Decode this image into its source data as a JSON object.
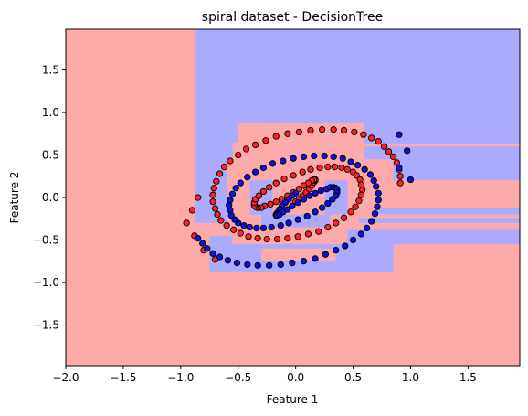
{
  "chart_data": {
    "type": "scatter",
    "title": "spiral dataset - DecisionTree",
    "xlabel": "Feature 1",
    "ylabel": "Feature 2",
    "xlim": [
      -2.0,
      1.95
    ],
    "ylim": [
      -1.98,
      1.98
    ],
    "xticks": [
      -2.0,
      -1.5,
      -1.0,
      -0.5,
      0.0,
      0.5,
      1.0,
      1.5
    ],
    "yticks": [
      -1.5,
      -1.0,
      -0.5,
      0.0,
      0.5,
      1.0,
      1.5
    ],
    "xtick_labels": [
      "−2.0",
      "−1.5",
      "−1.0",
      "−0.5",
      "0.0",
      "0.5",
      "1.0",
      "1.5"
    ],
    "ytick_labels": [
      "−1.5",
      "−1.0",
      "−0.5",
      "0.0",
      "0.5",
      "1.0",
      "1.5"
    ],
    "grid": false,
    "colors": {
      "region_red": "#ffaaaa",
      "region_blue": "#aaaaff",
      "point_red": "#ff2020",
      "point_blue": "#1010dd",
      "point_edge": "#000000"
    },
    "decision_regions": [
      {
        "class": "blue",
        "x0": -0.87,
        "x1": 1.95,
        "y0": 0.65,
        "y1": 1.98
      },
      {
        "class": "blue",
        "x0": -0.87,
        "x1": -0.55,
        "y0": 0.2,
        "y1": 0.65
      },
      {
        "class": "blue",
        "x0": -0.87,
        "x1": -0.6,
        "y0": -0.3,
        "y1": 0.2
      },
      {
        "class": "blue",
        "x0": 0.42,
        "x1": 1.95,
        "y0": 0.2,
        "y1": 0.65
      },
      {
        "class": "blue",
        "x0": -0.75,
        "x1": 0.85,
        "y0": -0.88,
        "y1": -0.45
      },
      {
        "class": "blue",
        "x0": 0.45,
        "x1": 1.95,
        "y0": -0.55,
        "y1": -0.38
      },
      {
        "class": "blue",
        "x0": 0.7,
        "x1": 1.95,
        "y0": -0.2,
        "y1": -0.12
      },
      {
        "class": "blue",
        "x0": 0.55,
        "x1": 1.95,
        "y0": -0.3,
        "y1": -0.24
      },
      {
        "class": "blue",
        "x0": -0.45,
        "x1": 0.45,
        "y0": 0.3,
        "y1": 0.45
      },
      {
        "class": "blue",
        "x0": -0.3,
        "x1": 0.3,
        "y0": -0.35,
        "y1": -0.2
      },
      {
        "class": "blue",
        "x0": -0.4,
        "x1": -0.2,
        "y0": -0.2,
        "y1": 0.3
      },
      {
        "class": "blue",
        "x0": 0.25,
        "x1": 0.45,
        "y0": -0.2,
        "y1": 0.3
      },
      {
        "class": "red",
        "x0": 0.55,
        "x1": 1.95,
        "y0": -0.12,
        "y1": 0.0
      },
      {
        "class": "red",
        "x0": -0.5,
        "x1": 0.6,
        "y0": 0.45,
        "y1": 0.88
      },
      {
        "class": "red",
        "x0": -0.6,
        "x1": 0.85,
        "y0": 0.2,
        "y1": 0.45
      },
      {
        "class": "red",
        "x0": 0.6,
        "x1": 1.95,
        "y0": 0.0,
        "y1": 0.2
      },
      {
        "class": "red",
        "x0": -0.55,
        "x1": 0.45,
        "y0": -0.55,
        "y1": -0.35
      },
      {
        "class": "red",
        "x0": -0.55,
        "x1": -0.4,
        "y0": -0.35,
        "y1": 0.2
      },
      {
        "class": "red",
        "x0": -0.2,
        "x1": 0.25,
        "y0": -0.2,
        "y1": 0.3
      },
      {
        "class": "red",
        "x0": -0.3,
        "x1": 0.35,
        "y0": -0.75,
        "y1": -0.6
      },
      {
        "class": "red",
        "x0": 0.45,
        "x1": 1.95,
        "y0": 0.6,
        "y1": 0.63
      },
      {
        "class": "red",
        "x0": 0.55,
        "x1": 1.95,
        "y0": -0.38,
        "y1": -0.32
      }
    ],
    "series": [
      {
        "class": "red",
        "x": [
          0.0,
          0.03,
          0.06,
          0.09,
          0.12,
          0.14,
          0.16,
          0.17,
          0.17,
          0.16,
          0.14,
          0.11,
          0.07,
          0.03,
          -0.02,
          -0.07,
          -0.12,
          -0.17,
          -0.22,
          -0.27,
          -0.3,
          -0.33,
          -0.35,
          -0.36,
          -0.36,
          -0.35,
          -0.32,
          -0.28,
          -0.23,
          -0.17,
          -0.1,
          -0.02,
          0.06,
          0.13,
          0.21,
          0.28,
          0.34,
          0.4,
          0.45,
          0.5,
          0.53,
          0.56,
          0.57,
          0.58,
          0.57,
          0.55,
          0.52,
          0.48,
          0.42,
          0.35,
          0.28,
          0.2,
          0.11,
          0.02,
          -0.07,
          -0.16,
          -0.25,
          -0.33,
          -0.41,
          -0.48,
          -0.54,
          -0.6,
          -0.65,
          -0.68,
          -0.7,
          -0.72,
          -0.72,
          -0.71,
          -0.69,
          -0.66,
          -0.62,
          -0.57,
          -0.5,
          -0.43,
          -0.35,
          -0.26,
          -0.17,
          -0.07,
          0.03,
          0.13,
          0.23,
          0.33,
          0.42,
          0.51,
          0.59,
          0.66,
          0.72,
          0.77,
          0.81,
          0.85,
          0.88,
          0.9,
          0.91,
          0.91,
          -0.7,
          -0.8,
          -0.88,
          -0.95,
          -0.9,
          -0.85
        ],
        "y": [
          -0.05,
          -0.02,
          0.02,
          0.06,
          0.1,
          0.14,
          0.18,
          0.2,
          0.21,
          0.21,
          0.2,
          0.17,
          0.14,
          0.1,
          0.06,
          0.02,
          -0.02,
          -0.05,
          -0.08,
          -0.1,
          -0.12,
          -0.12,
          -0.11,
          -0.09,
          -0.06,
          -0.02,
          0.02,
          0.07,
          0.12,
          0.17,
          0.22,
          0.26,
          0.3,
          0.33,
          0.35,
          0.36,
          0.36,
          0.35,
          0.33,
          0.3,
          0.26,
          0.21,
          0.15,
          0.09,
          0.03,
          -0.04,
          -0.11,
          -0.17,
          -0.24,
          -0.3,
          -0.35,
          -0.4,
          -0.43,
          -0.46,
          -0.48,
          -0.49,
          -0.49,
          -0.48,
          -0.46,
          -0.42,
          -0.38,
          -0.33,
          -0.27,
          -0.2,
          -0.13,
          -0.05,
          0.03,
          0.11,
          0.19,
          0.28,
          0.36,
          0.43,
          0.5,
          0.57,
          0.62,
          0.67,
          0.72,
          0.75,
          0.77,
          0.79,
          0.8,
          0.8,
          0.79,
          0.77,
          0.74,
          0.7,
          0.66,
          0.6,
          0.54,
          0.48,
          0.41,
          0.33,
          0.25,
          0.17,
          -0.73,
          -0.62,
          -0.45,
          -0.3,
          -0.15,
          0.0
        ]
      },
      {
        "class": "blue",
        "x": [
          0.0,
          -0.03,
          -0.06,
          -0.09,
          -0.12,
          -0.14,
          -0.16,
          -0.17,
          -0.17,
          -0.16,
          -0.14,
          -0.11,
          -0.07,
          -0.03,
          0.02,
          0.07,
          0.12,
          0.17,
          0.22,
          0.27,
          0.3,
          0.33,
          0.35,
          0.36,
          0.36,
          0.35,
          0.32,
          0.28,
          0.23,
          0.17,
          0.1,
          0.02,
          -0.06,
          -0.13,
          -0.21,
          -0.28,
          -0.34,
          -0.4,
          -0.45,
          -0.5,
          -0.53,
          -0.56,
          -0.57,
          -0.58,
          -0.57,
          -0.55,
          -0.52,
          -0.48,
          -0.42,
          -0.35,
          -0.28,
          -0.2,
          -0.11,
          -0.02,
          0.07,
          0.16,
          0.25,
          0.33,
          0.41,
          0.48,
          0.54,
          0.6,
          0.65,
          0.68,
          0.7,
          0.72,
          0.72,
          0.71,
          0.69,
          0.66,
          0.62,
          0.57,
          0.5,
          0.43,
          0.35,
          0.26,
          0.17,
          0.07,
          -0.03,
          -0.13,
          -0.23,
          -0.33,
          -0.42,
          -0.51,
          -0.59,
          -0.66,
          -0.72,
          -0.77,
          -0.81,
          -0.85,
          0.9,
          0.97,
          1.0,
          0.9
        ],
        "y": [
          0.05,
          0.02,
          -0.02,
          -0.06,
          -0.1,
          -0.14,
          -0.18,
          -0.2,
          -0.21,
          -0.21,
          -0.2,
          -0.17,
          -0.14,
          -0.1,
          -0.06,
          -0.02,
          0.02,
          0.05,
          0.08,
          0.1,
          0.12,
          0.12,
          0.11,
          0.09,
          0.06,
          0.02,
          -0.02,
          -0.07,
          -0.12,
          -0.17,
          -0.22,
          -0.26,
          -0.3,
          -0.33,
          -0.35,
          -0.36,
          -0.36,
          -0.35,
          -0.33,
          -0.3,
          -0.26,
          -0.21,
          -0.15,
          -0.09,
          -0.03,
          0.04,
          0.11,
          0.17,
          0.24,
          0.3,
          0.35,
          0.4,
          0.43,
          0.46,
          0.48,
          0.49,
          0.49,
          0.48,
          0.46,
          0.42,
          0.38,
          0.33,
          0.27,
          0.2,
          0.13,
          0.05,
          -0.03,
          -0.11,
          -0.19,
          -0.28,
          -0.36,
          -0.43,
          -0.5,
          -0.57,
          -0.62,
          -0.67,
          -0.72,
          -0.75,
          -0.77,
          -0.79,
          -0.8,
          -0.8,
          -0.79,
          -0.77,
          -0.74,
          -0.7,
          -0.66,
          -0.6,
          -0.54,
          -0.48,
          0.74,
          0.55,
          0.21,
          0.35
        ]
      }
    ]
  }
}
